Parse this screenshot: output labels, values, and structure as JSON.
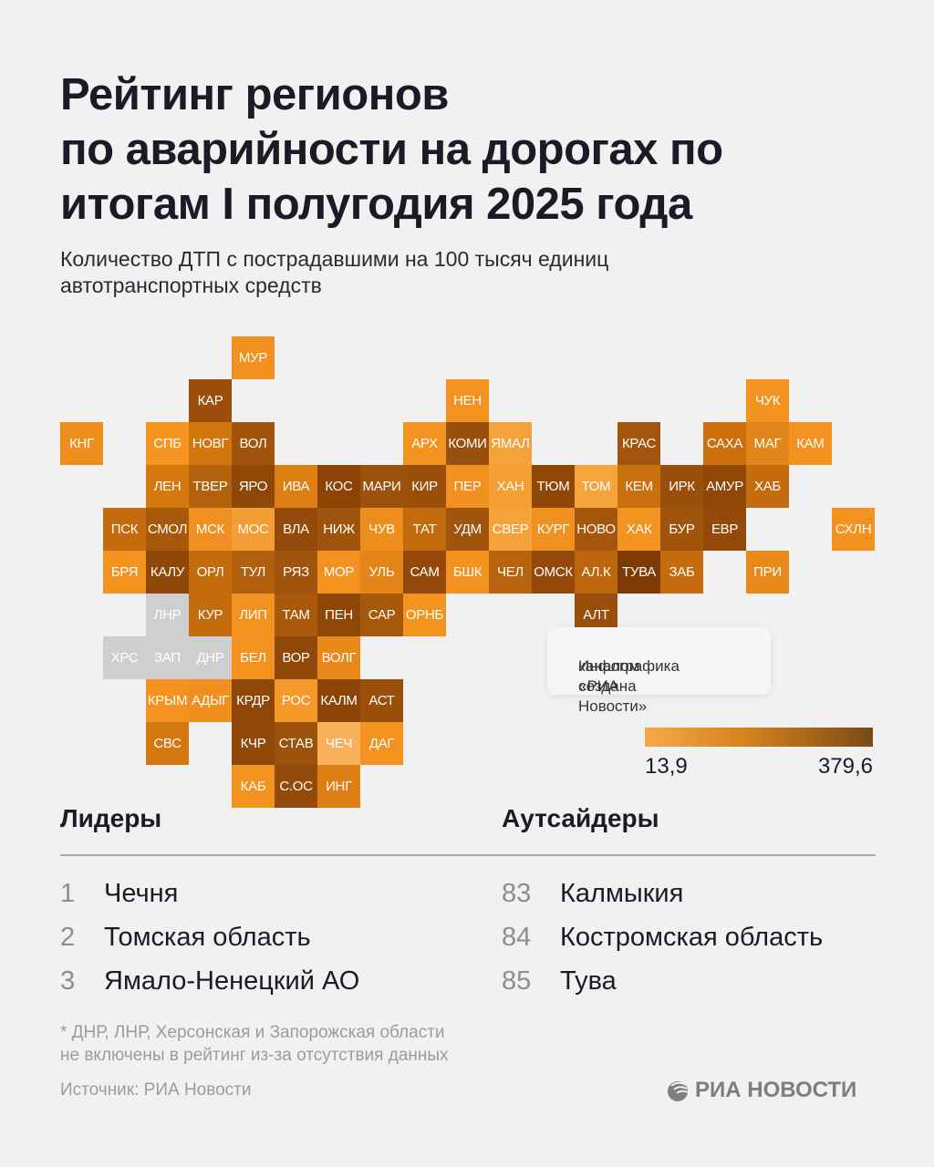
{
  "header": {
    "title_lines": [
      "Рейтинг регионов",
      "по аварийности на дорогах по",
      "итогам I полугодия 2025 года"
    ],
    "subtitle_lines": [
      "Количество ДТП с пострадавшими на 100 тысяч единиц",
      "автотранспортных средств"
    ]
  },
  "note": {
    "lines": [
      "Инфографика создана",
      "каналом «РИА Новости»"
    ]
  },
  "legend": {
    "min_label": "13,9",
    "max_label": "379,6",
    "color_low": "#f7a845",
    "color_high": "#7a4a18"
  },
  "chart_data": {
    "type": "heatmap",
    "title": "Рейтинг регионов по аварийности на дорогах по итогам I полугодия 2025 года",
    "value_range": [
      13.9,
      379.6
    ],
    "no_data_color": "#cfcfd1",
    "tiles": [
      {
        "label": "МУР",
        "col": 4,
        "row": 0,
        "color": "#f0901e"
      },
      {
        "label": "КАР",
        "col": 3,
        "row": 1,
        "color": "#9b4f0a"
      },
      {
        "label": "НЕН",
        "col": 9,
        "row": 1,
        "color": "#f3921e"
      },
      {
        "label": "ЧУК",
        "col": 16,
        "row": 1,
        "color": "#f3921e"
      },
      {
        "label": "КНГ",
        "col": 0,
        "row": 2,
        "color": "#ee8e1c"
      },
      {
        "label": "СПБ",
        "col": 2,
        "row": 2,
        "color": "#f5951f"
      },
      {
        "label": "НОВГ",
        "col": 3,
        "row": 2,
        "color": "#d2760f"
      },
      {
        "label": "ВОЛ",
        "col": 4,
        "row": 2,
        "color": "#a1540c"
      },
      {
        "label": "АРХ",
        "col": 8,
        "row": 2,
        "color": "#f3921e"
      },
      {
        "label": "КОМИ",
        "col": 9,
        "row": 2,
        "color": "#97500d"
      },
      {
        "label": "ЯМАЛ",
        "col": 10,
        "row": 2,
        "color": "#f6a23a"
      },
      {
        "label": "КРАС",
        "col": 13,
        "row": 2,
        "color": "#a2560d"
      },
      {
        "label": "САХА",
        "col": 15,
        "row": 2,
        "color": "#cc700e"
      },
      {
        "label": "МАГ",
        "col": 16,
        "row": 2,
        "color": "#e2851a"
      },
      {
        "label": "КАМ",
        "col": 17,
        "row": 2,
        "color": "#f3921e"
      },
      {
        "label": "ЛЕН",
        "col": 2,
        "row": 3,
        "color": "#d5790f"
      },
      {
        "label": "ТВЕР",
        "col": 3,
        "row": 3,
        "color": "#b2620c"
      },
      {
        "label": "ЯРО",
        "col": 4,
        "row": 3,
        "color": "#8f4708"
      },
      {
        "label": "ИВА",
        "col": 5,
        "row": 3,
        "color": "#dd7f13"
      },
      {
        "label": "КОС",
        "col": 6,
        "row": 3,
        "color": "#8c4306"
      },
      {
        "label": "МАРИ",
        "col": 7,
        "row": 3,
        "color": "#9d520b"
      },
      {
        "label": "КИР",
        "col": 8,
        "row": 3,
        "color": "#9a500b"
      },
      {
        "label": "ПЕР",
        "col": 9,
        "row": 3,
        "color": "#f0901e"
      },
      {
        "label": "ХАН",
        "col": 10,
        "row": 3,
        "color": "#f59e32"
      },
      {
        "label": "ТЮМ",
        "col": 11,
        "row": 3,
        "color": "#8f4708"
      },
      {
        "label": "ТОМ",
        "col": 12,
        "row": 3,
        "color": "#f6a43c"
      },
      {
        "label": "КЕМ",
        "col": 13,
        "row": 3,
        "color": "#c8700e"
      },
      {
        "label": "ИРК",
        "col": 14,
        "row": 3,
        "color": "#98500c"
      },
      {
        "label": "АМУР",
        "col": 15,
        "row": 3,
        "color": "#904808"
      },
      {
        "label": "ХАБ",
        "col": 16,
        "row": 3,
        "color": "#c56d0e"
      },
      {
        "label": "ПСК",
        "col": 1,
        "row": 4,
        "color": "#c46b0d"
      },
      {
        "label": "СМОЛ",
        "col": 2,
        "row": 4,
        "color": "#a6580b"
      },
      {
        "label": "МСК",
        "col": 3,
        "row": 4,
        "color": "#f09020"
      },
      {
        "label": "МОС",
        "col": 4,
        "row": 4,
        "color": "#f59d35"
      },
      {
        "label": "ВЛА",
        "col": 5,
        "row": 4,
        "color": "#95490a"
      },
      {
        "label": "НИЖ",
        "col": 6,
        "row": 4,
        "color": "#a0530c"
      },
      {
        "label": "ЧУВ",
        "col": 7,
        "row": 4,
        "color": "#ec8d1c"
      },
      {
        "label": "ТАТ",
        "col": 8,
        "row": 4,
        "color": "#c26c0e"
      },
      {
        "label": "УДМ",
        "col": 9,
        "row": 4,
        "color": "#a1540c"
      },
      {
        "label": "СВЕР",
        "col": 10,
        "row": 4,
        "color": "#f6a23a"
      },
      {
        "label": "КУРГ",
        "col": 11,
        "row": 4,
        "color": "#f0901e"
      },
      {
        "label": "НОВО",
        "col": 12,
        "row": 4,
        "color": "#a3560c"
      },
      {
        "label": "ХАК",
        "col": 13,
        "row": 4,
        "color": "#f39421"
      },
      {
        "label": "БУР",
        "col": 14,
        "row": 4,
        "color": "#a1540c"
      },
      {
        "label": "ЕВР",
        "col": 15,
        "row": 4,
        "color": "#94490a"
      },
      {
        "label": "СХЛН",
        "col": 18,
        "row": 4,
        "color": "#f3921e"
      },
      {
        "label": "БРЯ",
        "col": 1,
        "row": 5,
        "color": "#f3921e"
      },
      {
        "label": "КАЛУ",
        "col": 2,
        "row": 5,
        "color": "#8f4708"
      },
      {
        "label": "ОРЛ",
        "col": 3,
        "row": 5,
        "color": "#c46b0d"
      },
      {
        "label": "ТУЛ",
        "col": 4,
        "row": 5,
        "color": "#b0600c"
      },
      {
        "label": "РЯЗ",
        "col": 5,
        "row": 5,
        "color": "#a1540c"
      },
      {
        "label": "МОР",
        "col": 6,
        "row": 5,
        "color": "#f3921e"
      },
      {
        "label": "УЛЬ",
        "col": 7,
        "row": 5,
        "color": "#e38617"
      },
      {
        "label": "САМ",
        "col": 8,
        "row": 5,
        "color": "#94490a"
      },
      {
        "label": "БШК",
        "col": 9,
        "row": 5,
        "color": "#f3921e"
      },
      {
        "label": "ЧЕЛ",
        "col": 10,
        "row": 5,
        "color": "#b8640d"
      },
      {
        "label": "ОМСК",
        "col": 11,
        "row": 5,
        "color": "#94490a"
      },
      {
        "label": "АЛ.К",
        "col": 12,
        "row": 5,
        "color": "#bb660d"
      },
      {
        "label": "ТУВА",
        "col": 13,
        "row": 5,
        "color": "#7e3a05"
      },
      {
        "label": "ЗАБ",
        "col": 14,
        "row": 5,
        "color": "#c56d0e"
      },
      {
        "label": "ПРИ",
        "col": 16,
        "row": 5,
        "color": "#e8891a"
      },
      {
        "label": "ЛНР",
        "col": 2,
        "row": 6,
        "color": null
      },
      {
        "label": "КУР",
        "col": 3,
        "row": 6,
        "color": "#c46b0d"
      },
      {
        "label": "ЛИП",
        "col": 4,
        "row": 6,
        "color": "#f3921e"
      },
      {
        "label": "ТАМ",
        "col": 5,
        "row": 6,
        "color": "#a9590c"
      },
      {
        "label": "ПЕН",
        "col": 6,
        "row": 6,
        "color": "#8f4708"
      },
      {
        "label": "САР",
        "col": 7,
        "row": 6,
        "color": "#a6580b"
      },
      {
        "label": "ОРНБ",
        "col": 8,
        "row": 6,
        "color": "#f39421"
      },
      {
        "label": "АЛТ",
        "col": 12,
        "row": 6,
        "color": "#9a4e0b"
      },
      {
        "label": "ХРС",
        "col": 1,
        "row": 7,
        "color": null
      },
      {
        "label": "ЗАП",
        "col": 2,
        "row": 7,
        "color": null
      },
      {
        "label": "ДНР",
        "col": 3,
        "row": 7,
        "color": null
      },
      {
        "label": "БЕЛ",
        "col": 4,
        "row": 7,
        "color": "#f3921e"
      },
      {
        "label": "ВОР",
        "col": 5,
        "row": 7,
        "color": "#904808"
      },
      {
        "label": "ВОЛГ",
        "col": 6,
        "row": 7,
        "color": "#e8891a"
      },
      {
        "label": "КРЫМ",
        "col": 2,
        "row": 8,
        "color": "#f3921e"
      },
      {
        "label": "АДЫГ",
        "col": 3,
        "row": 8,
        "color": "#ef901e"
      },
      {
        "label": "КРДР",
        "col": 4,
        "row": 8,
        "color": "#8f4708"
      },
      {
        "label": "РОС",
        "col": 5,
        "row": 8,
        "color": "#f59a2a"
      },
      {
        "label": "КАЛМ",
        "col": 6,
        "row": 8,
        "color": "#8c4306"
      },
      {
        "label": "АСТ",
        "col": 7,
        "row": 8,
        "color": "#9a500b"
      },
      {
        "label": "СВС",
        "col": 2,
        "row": 9,
        "color": "#d2780f"
      },
      {
        "label": "КЧР",
        "col": 4,
        "row": 9,
        "color": "#914708"
      },
      {
        "label": "СТАВ",
        "col": 5,
        "row": 9,
        "color": "#9d520b"
      },
      {
        "label": "ЧЕЧ",
        "col": 6,
        "row": 9,
        "color": "#f8b05a"
      },
      {
        "label": "ДАГ",
        "col": 7,
        "row": 9,
        "color": "#f3921e"
      },
      {
        "label": "КАБ",
        "col": 4,
        "row": 10,
        "color": "#f3921e"
      },
      {
        "label": "С.ОС",
        "col": 5,
        "row": 10,
        "color": "#95490a"
      },
      {
        "label": "ИНГ",
        "col": 6,
        "row": 10,
        "color": "#dd7f13"
      }
    ]
  },
  "leaders": {
    "heading": "Лидеры",
    "items": [
      {
        "rank": "1",
        "name": "Чечня"
      },
      {
        "rank": "2",
        "name": "Томская область"
      },
      {
        "rank": "3",
        "name": "Ямало-Ненецкий АО"
      }
    ]
  },
  "outsiders": {
    "heading": "Аутсайдеры",
    "items": [
      {
        "rank": "83",
        "name": "Калмыкия"
      },
      {
        "rank": "84",
        "name": "Костромская область"
      },
      {
        "rank": "85",
        "name": "Тува"
      }
    ]
  },
  "footer": {
    "footnote_lines": [
      "* ДНР, ЛНР, Херсонская и Запорожская области",
      "не включены в рейтинг из-за отсутствия данных"
    ],
    "source": "Источник: РИА Новости",
    "logo_text": "РИА НОВОСТИ",
    "logo_icon": "ria-globe-icon"
  }
}
